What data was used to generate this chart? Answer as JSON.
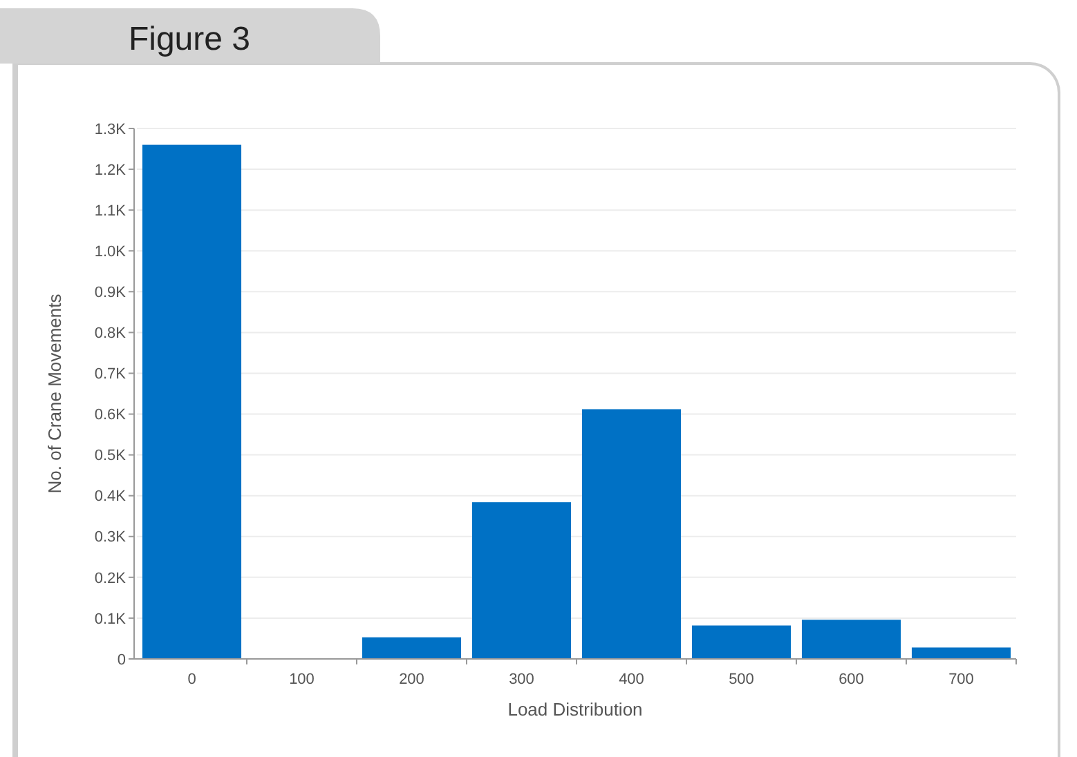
{
  "chart_data": {
    "type": "bar",
    "title": "Figure 3",
    "xlabel": "Load Distribution",
    "ylabel": "No. of Crane Movements",
    "categories": [
      "0",
      "100",
      "200",
      "300",
      "400",
      "500",
      "600",
      "700"
    ],
    "values": [
      1260,
      null,
      53,
      384,
      612,
      82,
      96,
      28
    ],
    "color": "#0071c5",
    "ylim": [
      0,
      1300
    ],
    "yticks": [
      0,
      {
        "value": 100,
        "label": "0.1K"
      },
      {
        "value": 200,
        "label": "0.2K"
      },
      {
        "value": 300,
        "label": "0.3K"
      },
      {
        "value": 400,
        "label": "0.4K"
      },
      {
        "value": 500,
        "label": "0.5K"
      },
      {
        "value": 600,
        "label": "0.6K"
      },
      {
        "value": 700,
        "label": "0.7K"
      },
      {
        "value": 800,
        "label": "0.8K"
      },
      {
        "value": 900,
        "label": "0.9K"
      },
      {
        "value": 1000,
        "label": "1.0K"
      },
      {
        "value": 1100,
        "label": "1.1K"
      },
      {
        "value": 1200,
        "label": "1.2K"
      },
      {
        "value": 1300,
        "label": "1.3K"
      }
    ],
    "grid": "y"
  }
}
